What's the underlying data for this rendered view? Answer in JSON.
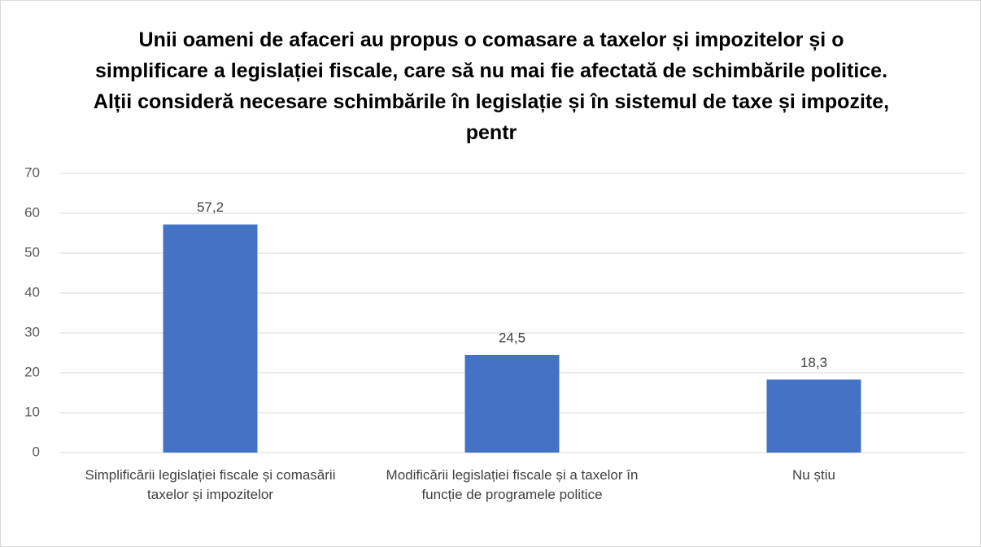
{
  "chart_data": {
    "type": "bar",
    "title": "Unii oameni de afaceri au propus o comasare a taxelor și impozitelor și o simplificare a legislației fiscale, care să nu mai fie afectată de schimbările politice. Alții consideră necesare schimbările în legislație și în sistemul de taxe și impozite, pentr",
    "categories": [
      "Simplificării legislației fiscale și comasării taxelor și impozitelor",
      "Modificării legislației fiscale și a taxelor în funcție de programele politice",
      "Nu știu"
    ],
    "values": [
      57.2,
      24.5,
      18.3
    ],
    "value_labels": [
      "57,2",
      "24,5",
      "18,3"
    ],
    "color": "#4472c4",
    "ylim": [
      0,
      70
    ],
    "yticks": [
      0,
      10,
      20,
      30,
      40,
      50,
      60,
      70
    ],
    "grid": true
  }
}
